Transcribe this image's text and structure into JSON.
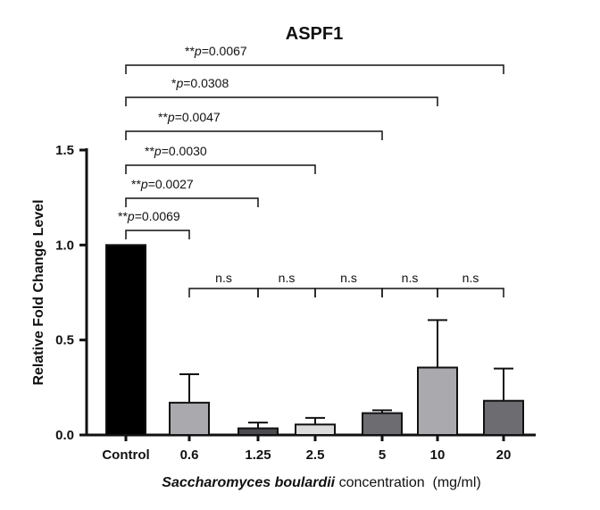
{
  "chart_data": {
    "type": "bar",
    "title": "ASPF1",
    "ylabel": "Relative Fold Change Level",
    "xlabel": {
      "italic": "Saccharomyces boulardii",
      "rest": " concentration  (mg/ml)"
    },
    "ylim": [
      0,
      1.5
    ],
    "yticks": [
      {
        "value": 0.0,
        "label": "0.0"
      },
      {
        "value": 0.5,
        "label": "0.5"
      },
      {
        "value": 1.0,
        "label": "1.0"
      },
      {
        "value": 1.5,
        "label": "1.5"
      }
    ],
    "categories": [
      "Control",
      "0.6",
      "1.25",
      "2.5",
      "5",
      "10",
      "20"
    ],
    "values": [
      1.0,
      0.17,
      0.035,
      0.055,
      0.115,
      0.355,
      0.18
    ],
    "errors": [
      0.0,
      0.15,
      0.03,
      0.035,
      0.015,
      0.25,
      0.17
    ],
    "colors": [
      "#000000",
      "#a9a9ae",
      "#4a4a4f",
      "#dcdcdc",
      "#6d6d71",
      "#a9a9ae",
      "#6d6d71"
    ],
    "grid": false,
    "significance_control": [
      {
        "to": "0.6",
        "stars": "**",
        "p": "p",
        "rest": "=0.0069"
      },
      {
        "to": "1.25",
        "stars": "**",
        "p": "p",
        "rest": "=0.0027"
      },
      {
        "to": "2.5",
        "stars": "**",
        "p": "p",
        "rest": "=0.0030"
      },
      {
        "to": "5",
        "stars": "**",
        "p": "p",
        "rest": "=0.0047"
      },
      {
        "to": "10",
        "stars": "*",
        "p": "p",
        "rest": "=0.0308"
      },
      {
        "to": "20",
        "stars": "**",
        "p": "p",
        "rest": "=0.0067"
      }
    ],
    "significance_adjacent": [
      {
        "from": "0.6",
        "to": "1.25",
        "label": "n.s"
      },
      {
        "from": "1.25",
        "to": "2.5",
        "label": "n.s"
      },
      {
        "from": "2.5",
        "to": "5",
        "label": "n.s"
      },
      {
        "from": "5",
        "to": "10",
        "label": "n.s"
      },
      {
        "from": "10",
        "to": "20",
        "label": "n.s"
      }
    ]
  }
}
